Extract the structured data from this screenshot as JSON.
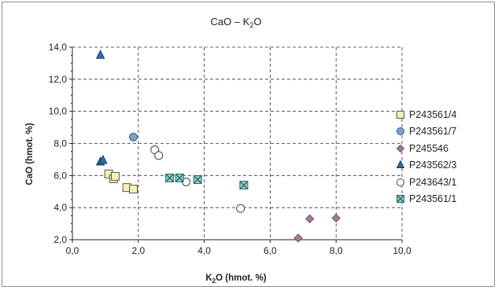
{
  "chart_data": {
    "type": "scatter",
    "title": {
      "main": "CaO – K",
      "sub": "2",
      "tail": "O"
    },
    "xlabel": {
      "main": "K",
      "sub": "2",
      "tail": "O (hmot. %)"
    },
    "ylabel": "CaO (hmot. %)",
    "xlim": [
      0,
      10
    ],
    "ylim": [
      2,
      14
    ],
    "xticks": [
      "0,0",
      "2,0",
      "4,0",
      "6,0",
      "8,0",
      "10,0"
    ],
    "yticks": [
      "2,0",
      "4,0",
      "6,0",
      "8,0",
      "10,0",
      "12,0",
      "14,0"
    ],
    "grid": "dashed",
    "legend_position": "right",
    "series": [
      {
        "name": "P243561/4",
        "marker": "square",
        "fill": "#f5f1b4",
        "stroke": "#555555",
        "x": [
          1.1,
          1.25,
          1.3,
          1.65,
          1.85
        ],
        "y": [
          6.1,
          5.8,
          5.95,
          5.25,
          5.15
        ]
      },
      {
        "name": "P243561/7",
        "marker": "circle",
        "fill": "#7fa3c6",
        "stroke": "#3d5f80",
        "x": [
          1.85
        ],
        "y": [
          8.4
        ]
      },
      {
        "name": "P245546",
        "marker": "diamond",
        "fill": "#a8789f",
        "stroke": "#6e4a68",
        "x": [
          6.85,
          7.2,
          8.0
        ],
        "y": [
          2.1,
          3.3,
          3.35
        ]
      },
      {
        "name": "P243562/3",
        "marker": "triangle",
        "fill": "#2f6ea8",
        "stroke": "#1a3f66",
        "x": [
          0.85,
          0.85,
          0.93
        ],
        "y": [
          13.5,
          6.85,
          6.95
        ]
      },
      {
        "name": "P243643/1",
        "marker": "circle",
        "fill": "#ffffff",
        "stroke": "#444444",
        "x": [
          2.5,
          2.62,
          3.45,
          5.1
        ],
        "y": [
          7.6,
          7.25,
          5.6,
          3.95
        ]
      },
      {
        "name": "P243561/1",
        "marker": "xsquare",
        "fill": "#8fd0cb",
        "stroke": "#2f6a66",
        "x": [
          2.95,
          3.25,
          3.8,
          5.2
        ],
        "y": [
          5.85,
          5.85,
          5.75,
          5.4
        ]
      }
    ]
  }
}
